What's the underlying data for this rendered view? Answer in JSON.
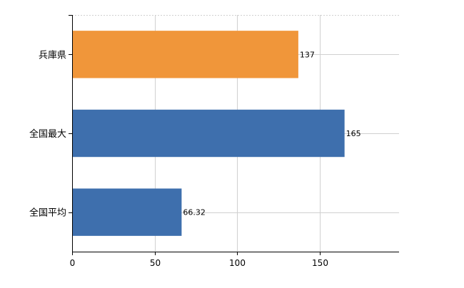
{
  "chart_data": {
    "type": "bar",
    "orientation": "horizontal",
    "categories": [
      "兵庫県",
      "全国最大",
      "全国平均"
    ],
    "values": [
      137,
      165,
      66.32
    ],
    "value_labels": [
      "137",
      "165",
      "66.32"
    ],
    "bar_colors": [
      "#f0963a",
      "#3e6fad",
      "#3e6fad"
    ],
    "xlim": [
      0,
      198
    ],
    "xticks": [
      0,
      50,
      100,
      150
    ],
    "xtick_labels": [
      "0",
      "50",
      "100",
      "150"
    ],
    "grid": true,
    "grid_color": "#d0d0d0",
    "axis_color": "#000000",
    "title": "",
    "xlabel": "",
    "ylabel": "",
    "legend": "none"
  }
}
